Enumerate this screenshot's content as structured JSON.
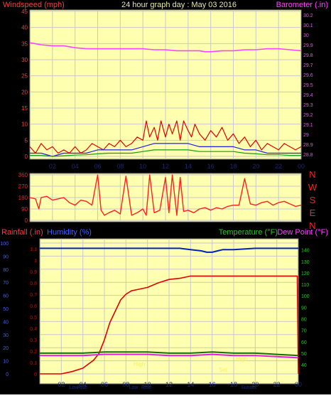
{
  "header": {
    "title": "24 hour graph day : May 03 2016",
    "left_label": "Windspeed (mph)",
    "right_label": "Barometer (.in)"
  },
  "colors": {
    "background": "#000000",
    "plot_bg": "#ffffb0",
    "grid": "#c8c8c8",
    "wind_label": "#ff3b3b",
    "baro_label": "#ff44ff",
    "title_color": "#e8e8a0",
    "rain": "#e00000",
    "humidity": "#0020c0",
    "temperature": "#107010",
    "dew_point": "#e020e0",
    "compass": "#ff2020",
    "x_tick_color": "#1a2a70",
    "event_label": "#f0f070"
  },
  "compass_labels": [
    "N",
    "W",
    "S",
    "E",
    "N"
  ],
  "chart_data": [
    {
      "id": "wind-baro",
      "type": "line",
      "xlabels": [
        "02",
        "04",
        "06",
        "08",
        "10",
        "12",
        "14",
        "16",
        "18",
        "20",
        "22",
        "00"
      ],
      "x_range_hours": [
        0,
        24
      ],
      "left_axis": {
        "label": "Windspeed (mph)",
        "ticks": [
          "0",
          "5",
          "10",
          "15",
          "20",
          "25",
          "30",
          "35",
          "40",
          "45"
        ],
        "range": [
          0,
          45
        ]
      },
      "right_axis": {
        "label": "Barometer (.in)",
        "ticks": [
          "28.8",
          "28.9",
          "29",
          "29.1",
          "29.2",
          "29.3",
          "29.4",
          "29.5",
          "29.6",
          "29.7",
          "29.8",
          "29.9",
          "30",
          "30.1",
          "30.2"
        ],
        "range": [
          28.75,
          30.25
        ]
      },
      "series": [
        {
          "name": "Barometer",
          "axis": "right",
          "x": [
            0,
            0.5,
            1,
            2,
            3,
            4,
            5,
            6,
            7,
            8,
            9,
            10,
            11,
            12,
            13,
            14,
            15,
            15.5,
            16,
            17,
            18,
            19,
            20,
            21,
            22,
            23,
            24
          ],
          "y": [
            29.92,
            29.91,
            29.9,
            29.89,
            29.89,
            29.87,
            29.86,
            29.86,
            29.86,
            29.86,
            29.86,
            29.86,
            29.85,
            29.85,
            29.84,
            29.84,
            29.84,
            29.83,
            29.83,
            29.84,
            29.84,
            29.85,
            29.85,
            29.86,
            29.86,
            29.85,
            29.84
          ]
        },
        {
          "name": "Gust",
          "axis": "left",
          "x": [
            0,
            0.5,
            1,
            1.5,
            2,
            2.5,
            3,
            3.5,
            4,
            4.5,
            5,
            5.5,
            6,
            6.5,
            7,
            7.5,
            8,
            8.5,
            9,
            9.5,
            10,
            10.3,
            10.6,
            11,
            11.3,
            11.6,
            12,
            12.3,
            12.6,
            13,
            13.3,
            13.6,
            14,
            14.3,
            14.6,
            15,
            15.5,
            16,
            16.5,
            17,
            17.5,
            18,
            18.5,
            19,
            19.5,
            20,
            20.5,
            21,
            21.5,
            22,
            22.5,
            23,
            23.5,
            24
          ],
          "y": [
            3,
            1,
            4,
            2,
            3,
            1,
            2,
            1,
            3,
            1,
            2,
            4,
            3,
            2,
            4,
            3,
            5,
            3,
            4,
            6,
            5,
            11,
            6,
            9,
            5,
            11,
            6,
            10,
            7,
            11,
            5,
            11,
            8,
            6,
            10,
            7,
            5,
            8,
            6,
            9,
            5,
            7,
            4,
            6,
            3,
            5,
            2,
            4,
            3,
            2,
            4,
            3,
            2,
            3
          ]
        },
        {
          "name": "Wind",
          "axis": "left",
          "x": [
            0,
            1,
            2,
            3,
            4,
            5,
            6,
            7,
            8,
            9,
            10,
            11,
            12,
            13,
            14,
            15,
            16,
            17,
            18,
            19,
            20,
            21,
            22,
            23,
            24
          ],
          "y": [
            1,
            1,
            0,
            1,
            1,
            1,
            2,
            2,
            2,
            2,
            3,
            4,
            4,
            4,
            4,
            3,
            3,
            3,
            3,
            2,
            2,
            1,
            1,
            1,
            1
          ]
        },
        {
          "name": "Avg Wind",
          "axis": "left",
          "x": [
            0,
            1,
            2,
            3,
            4,
            5,
            6,
            7,
            8,
            9,
            10,
            11,
            12,
            13,
            14,
            15,
            16,
            17,
            18,
            19,
            20,
            21,
            22,
            23,
            24
          ],
          "y": [
            0.3,
            0.3,
            0,
            0.2,
            0.4,
            0.5,
            0.8,
            1,
            1,
            1,
            1.5,
            2,
            2,
            2,
            2,
            1.5,
            1.5,
            1.5,
            1.5,
            1,
            0.8,
            0.5,
            0.5,
            0.3,
            0.3
          ]
        }
      ]
    },
    {
      "id": "wind-direction",
      "type": "line",
      "xlabels": [],
      "left_axis": {
        "ticks": [
          "0",
          "90",
          "180",
          "270",
          "360"
        ],
        "range": [
          0,
          360
        ]
      },
      "series": [
        {
          "name": "Wind direction",
          "x": [
            0,
            0.5,
            0.8,
            1,
            1.5,
            2,
            2.5,
            3,
            3.5,
            4,
            4.5,
            5,
            5.5,
            6,
            6.3,
            6.6,
            7,
            7.5,
            8,
            8.5,
            9,
            9.5,
            10,
            10.3,
            10.6,
            11,
            11.5,
            12,
            12.3,
            12.6,
            13,
            13.3,
            13.6,
            14,
            14.5,
            15,
            15.5,
            16,
            16.5,
            17,
            17.5,
            18,
            18.5,
            19,
            19.5,
            20,
            20.5,
            21,
            21.5,
            22,
            22.5,
            23,
            23.5,
            24
          ],
          "y": [
            180,
            170,
            90,
            180,
            190,
            160,
            170,
            180,
            140,
            120,
            160,
            150,
            120,
            360,
            80,
            40,
            60,
            80,
            50,
            350,
            40,
            60,
            90,
            40,
            360,
            60,
            80,
            340,
            60,
            360,
            40,
            340,
            70,
            80,
            60,
            90,
            100,
            80,
            100,
            90,
            110,
            120,
            120,
            330,
            130,
            120,
            140,
            150,
            120,
            140,
            150,
            130,
            110,
            120
          ]
        }
      ]
    },
    {
      "id": "rain-humidity-temp",
      "type": "line",
      "xlabels": [
        "02",
        "04",
        "06",
        "08",
        "10",
        "12",
        "14",
        "16",
        "18",
        "20",
        "22",
        "00"
      ],
      "left_labels": [
        "Rainfall (.in)",
        "Humidity (%)"
      ],
      "right_labels": [
        "Temperature (°F)",
        "Dew Point (°F)"
      ],
      "humidity_axis": {
        "ticks": [
          "0",
          "10",
          "20",
          "30",
          "40",
          "50",
          "60",
          "70",
          "80",
          "90",
          "100"
        ],
        "range": [
          0,
          100
        ]
      },
      "rain_axis": {
        "ticks": [
          "0",
          "0.1",
          "0.2",
          "0.3",
          "0.4",
          "0.5",
          "0.6",
          "0.7",
          "0.8",
          "0.9",
          "1",
          "1.1"
        ],
        "range": [
          0,
          1.1
        ]
      },
      "temp_axis": {
        "ticks": [
          "40",
          "50",
          "60",
          "70",
          "80",
          "90",
          "100",
          "110",
          "120",
          "130",
          "140"
        ],
        "range": [
          32,
          146
        ]
      },
      "event_labels": [
        "Low",
        "Rise",
        "Low",
        "High",
        "Rise",
        "High",
        "Sunset",
        "Set"
      ],
      "series": [
        {
          "name": "Rainfall",
          "axis": "rain",
          "x": [
            0,
            1,
            2,
            3,
            4,
            5,
            5.5,
            6,
            6.5,
            7,
            7.5,
            8,
            8.5,
            9,
            10,
            11,
            12,
            13,
            14,
            16,
            18,
            20,
            22,
            23.9,
            24
          ],
          "y": [
            0,
            0,
            0,
            0.02,
            0.05,
            0.12,
            0.18,
            0.3,
            0.45,
            0.55,
            0.65,
            0.7,
            0.73,
            0.74,
            0.76,
            0.8,
            0.83,
            0.84,
            0.86,
            0.86,
            0.86,
            0.86,
            0.86,
            0.86,
            0
          ]
        },
        {
          "name": "Humidity",
          "axis": "humidity",
          "x": [
            0,
            2,
            4,
            6,
            8,
            10,
            12,
            13,
            14,
            15,
            15.5,
            16,
            16.5,
            17,
            18,
            20,
            22,
            24
          ],
          "y": [
            96,
            96,
            96,
            96,
            96,
            96,
            96,
            96,
            95,
            94,
            93,
            93,
            94,
            95,
            95,
            96,
            96,
            96
          ]
        },
        {
          "name": "Temperature",
          "axis": "temp",
          "x": [
            0,
            2,
            4,
            6,
            8,
            10,
            12,
            14,
            16,
            18,
            20,
            22,
            24
          ],
          "y": [
            50,
            50,
            50,
            51,
            51,
            51,
            50,
            50,
            51,
            50,
            50,
            49,
            48
          ]
        },
        {
          "name": "Dew Point",
          "axis": "temp",
          "x": [
            0,
            2,
            4,
            6,
            8,
            10,
            12,
            14,
            16,
            18,
            20,
            22,
            24
          ],
          "y": [
            48,
            48,
            48,
            49,
            49,
            49,
            48,
            48,
            49,
            48,
            48,
            47,
            46
          ]
        }
      ]
    }
  ]
}
